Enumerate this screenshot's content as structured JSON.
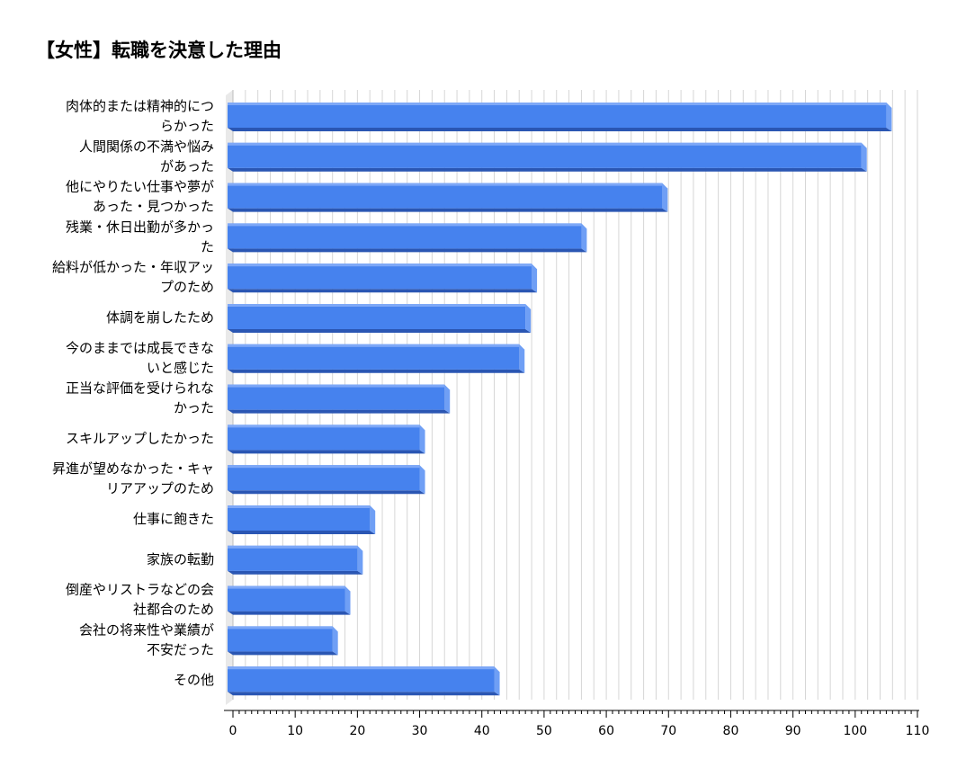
{
  "chart_data": {
    "type": "bar",
    "orientation": "horizontal",
    "title": "【女性】転職を決意した理由",
    "xlabel": "",
    "ylabel": "",
    "xlim": [
      0,
      110
    ],
    "x_ticks": [
      0,
      10,
      20,
      30,
      40,
      50,
      60,
      70,
      80,
      90,
      100,
      110
    ],
    "grid": true,
    "legend": "none",
    "bar_color": "#4682ee",
    "bar_shade_color": "#2a56b3",
    "categories": [
      [
        "肉体的または精神的につ",
        "らかった"
      ],
      [
        "人間関係の不満や悩み",
        "があった"
      ],
      [
        "他にやりたい仕事や夢が",
        "あった・見つかった"
      ],
      [
        "残業・休日出勤が多かっ",
        "た"
      ],
      [
        "給料が低かった・年収アッ",
        "プのため"
      ],
      [
        "体調を崩したため"
      ],
      [
        "今のままでは成長できな",
        "いと感じた"
      ],
      [
        "正当な評価を受けられな",
        "かった"
      ],
      [
        "スキルアップしたかった"
      ],
      [
        "昇進が望めなかった・キャ",
        "リアアップのため"
      ],
      [
        "仕事に飽きた"
      ],
      [
        "家族の転勤"
      ],
      [
        "倒産やリストラなどの会",
        "社都合のため"
      ],
      [
        "会社の将来性や業績が",
        "不安だった"
      ],
      [
        "その他"
      ]
    ],
    "values": [
      105,
      101,
      69,
      56,
      48,
      47,
      46,
      34,
      30,
      30,
      22,
      20,
      18,
      16,
      42
    ]
  }
}
